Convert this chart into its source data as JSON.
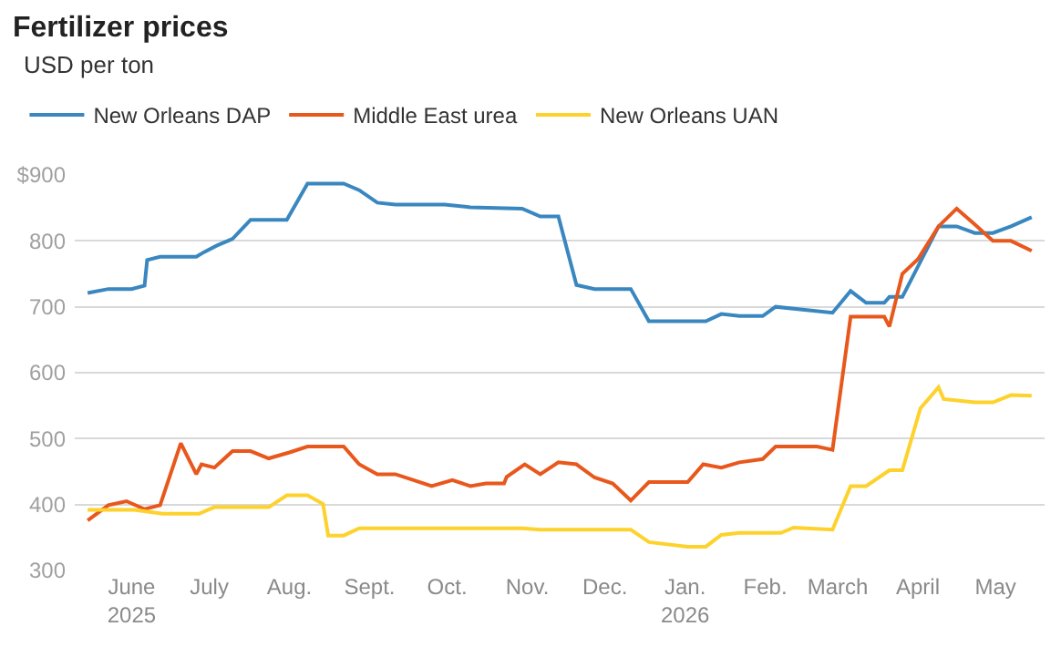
{
  "chart_data": {
    "type": "line",
    "title": "Fertilizer prices",
    "subtitle": "USD per ton",
    "legend": "top left",
    "grid": "y",
    "marker": "none",
    "line_style": "solid",
    "ylim": [
      300,
      900
    ],
    "yticks": [
      300,
      400,
      500,
      600,
      700,
      800,
      {
        "value": 900,
        "label": "$900"
      }
    ],
    "xlim": [
      "2025-05-10",
      "2026-05-20"
    ],
    "xticks": [
      {
        "value": "2025-06-01",
        "label": "June\n2025"
      },
      {
        "value": "2025-07-01",
        "label": "July"
      },
      {
        "value": "2025-08-01",
        "label": "Aug."
      },
      {
        "value": "2025-09-01",
        "label": "Sept."
      },
      {
        "value": "2025-10-01",
        "label": "Oct."
      },
      {
        "value": "2025-11-01",
        "label": "Nov."
      },
      {
        "value": "2025-12-01",
        "label": "Dec."
      },
      {
        "value": "2026-01-01",
        "label": "Jan.\n2026"
      },
      {
        "value": "2026-02-01",
        "label": "Feb."
      },
      {
        "value": "2026-03-01",
        "label": "March"
      },
      {
        "value": "2026-04-01",
        "label": "April"
      },
      {
        "value": "2026-05-01",
        "label": "May"
      }
    ],
    "series": [
      {
        "name": "New Orleans DAP",
        "color": "#3a87c0",
        "x": [
          "2025-05-15",
          "2025-05-23",
          "2025-06-01",
          "2025-06-06",
          "2025-06-07",
          "2025-06-12",
          "2025-06-26",
          "2025-06-29",
          "2025-07-04",
          "2025-07-10",
          "2025-07-17",
          "2025-07-31",
          "2025-08-08",
          "2025-08-22",
          "2025-08-28",
          "2025-09-04",
          "2025-09-11",
          "2025-09-30",
          "2025-10-10",
          "2025-10-30",
          "2025-11-06",
          "2025-11-13",
          "2025-11-20",
          "2025-11-27",
          "2025-12-11",
          "2025-12-18",
          "2026-01-09",
          "2026-01-15",
          "2026-01-22",
          "2026-01-31",
          "2026-02-05",
          "2026-02-27",
          "2026-03-06",
          "2026-03-12",
          "2026-03-19",
          "2026-03-21",
          "2026-03-26",
          "2026-04-09",
          "2026-04-16",
          "2026-04-23",
          "2026-04-30",
          "2026-05-07",
          "2026-05-15"
        ],
        "values": [
          721,
          727,
          727,
          732,
          771,
          776,
          776,
          783,
          793,
          803,
          832,
          832,
          887,
          887,
          877,
          858,
          855,
          855,
          851,
          849,
          837,
          837,
          733,
          727,
          727,
          678,
          678,
          689,
          686,
          686,
          700,
          691,
          724,
          706,
          706,
          715,
          715,
          822,
          822,
          812,
          812,
          822,
          836
        ]
      },
      {
        "name": "Middle East urea",
        "color": "#e8581c",
        "x": [
          "2025-05-15",
          "2025-05-23",
          "2025-05-30",
          "2025-06-06",
          "2025-06-12",
          "2025-06-20",
          "2025-06-26",
          "2025-06-28",
          "2025-07-03",
          "2025-07-10",
          "2025-07-17",
          "2025-07-24",
          "2025-08-01",
          "2025-08-08",
          "2025-08-22",
          "2025-08-28",
          "2025-09-04",
          "2025-09-11",
          "2025-09-18",
          "2025-09-25",
          "2025-10-03",
          "2025-10-10",
          "2025-10-16",
          "2025-10-23",
          "2025-10-24",
          "2025-10-31",
          "2025-11-06",
          "2025-11-13",
          "2025-11-20",
          "2025-11-27",
          "2025-12-04",
          "2025-12-11",
          "2025-12-18",
          "2026-01-02",
          "2026-01-08",
          "2026-01-15",
          "2026-01-22",
          "2026-01-31",
          "2026-02-05",
          "2026-02-21",
          "2026-02-27",
          "2026-03-06",
          "2026-03-19",
          "2026-03-21",
          "2026-03-26",
          "2026-04-01",
          "2026-04-09",
          "2026-04-16",
          "2026-04-23",
          "2026-04-30",
          "2026-05-07",
          "2026-05-15"
        ],
        "values": [
          376,
          399,
          405,
          393,
          399,
          493,
          446,
          461,
          456,
          481,
          481,
          470,
          479,
          488,
          488,
          461,
          446,
          446,
          437,
          428,
          437,
          428,
          432,
          432,
          442,
          461,
          446,
          464,
          461,
          441,
          432,
          406,
          434,
          434,
          461,
          456,
          464,
          469,
          488,
          488,
          483,
          685,
          685,
          670,
          750,
          772,
          822,
          849,
          825,
          800,
          800,
          785
        ]
      },
      {
        "name": "New Orleans UAN",
        "color": "#fdd22c",
        "x": [
          "2025-05-15",
          "2025-06-02",
          "2025-06-13",
          "2025-06-27",
          "2025-07-03",
          "2025-07-24",
          "2025-07-31",
          "2025-08-08",
          "2025-08-14",
          "2025-08-16",
          "2025-08-22",
          "2025-08-28",
          "2025-10-30",
          "2025-11-06",
          "2025-12-11",
          "2025-12-18",
          "2026-01-02",
          "2026-01-09",
          "2026-01-15",
          "2026-01-22",
          "2026-02-07",
          "2026-02-12",
          "2026-02-27",
          "2026-03-06",
          "2026-03-12",
          "2026-03-21",
          "2026-03-26",
          "2026-04-02",
          "2026-04-09",
          "2026-04-11",
          "2026-04-23",
          "2026-04-30",
          "2026-05-07",
          "2026-05-15"
        ],
        "values": [
          392,
          392,
          386,
          386,
          396,
          396,
          414,
          414,
          401,
          353,
          353,
          364,
          364,
          362,
          362,
          343,
          336,
          336,
          354,
          357,
          357,
          365,
          362,
          428,
          428,
          452,
          452,
          546,
          578,
          560,
          555,
          555,
          566,
          565
        ]
      }
    ]
  }
}
